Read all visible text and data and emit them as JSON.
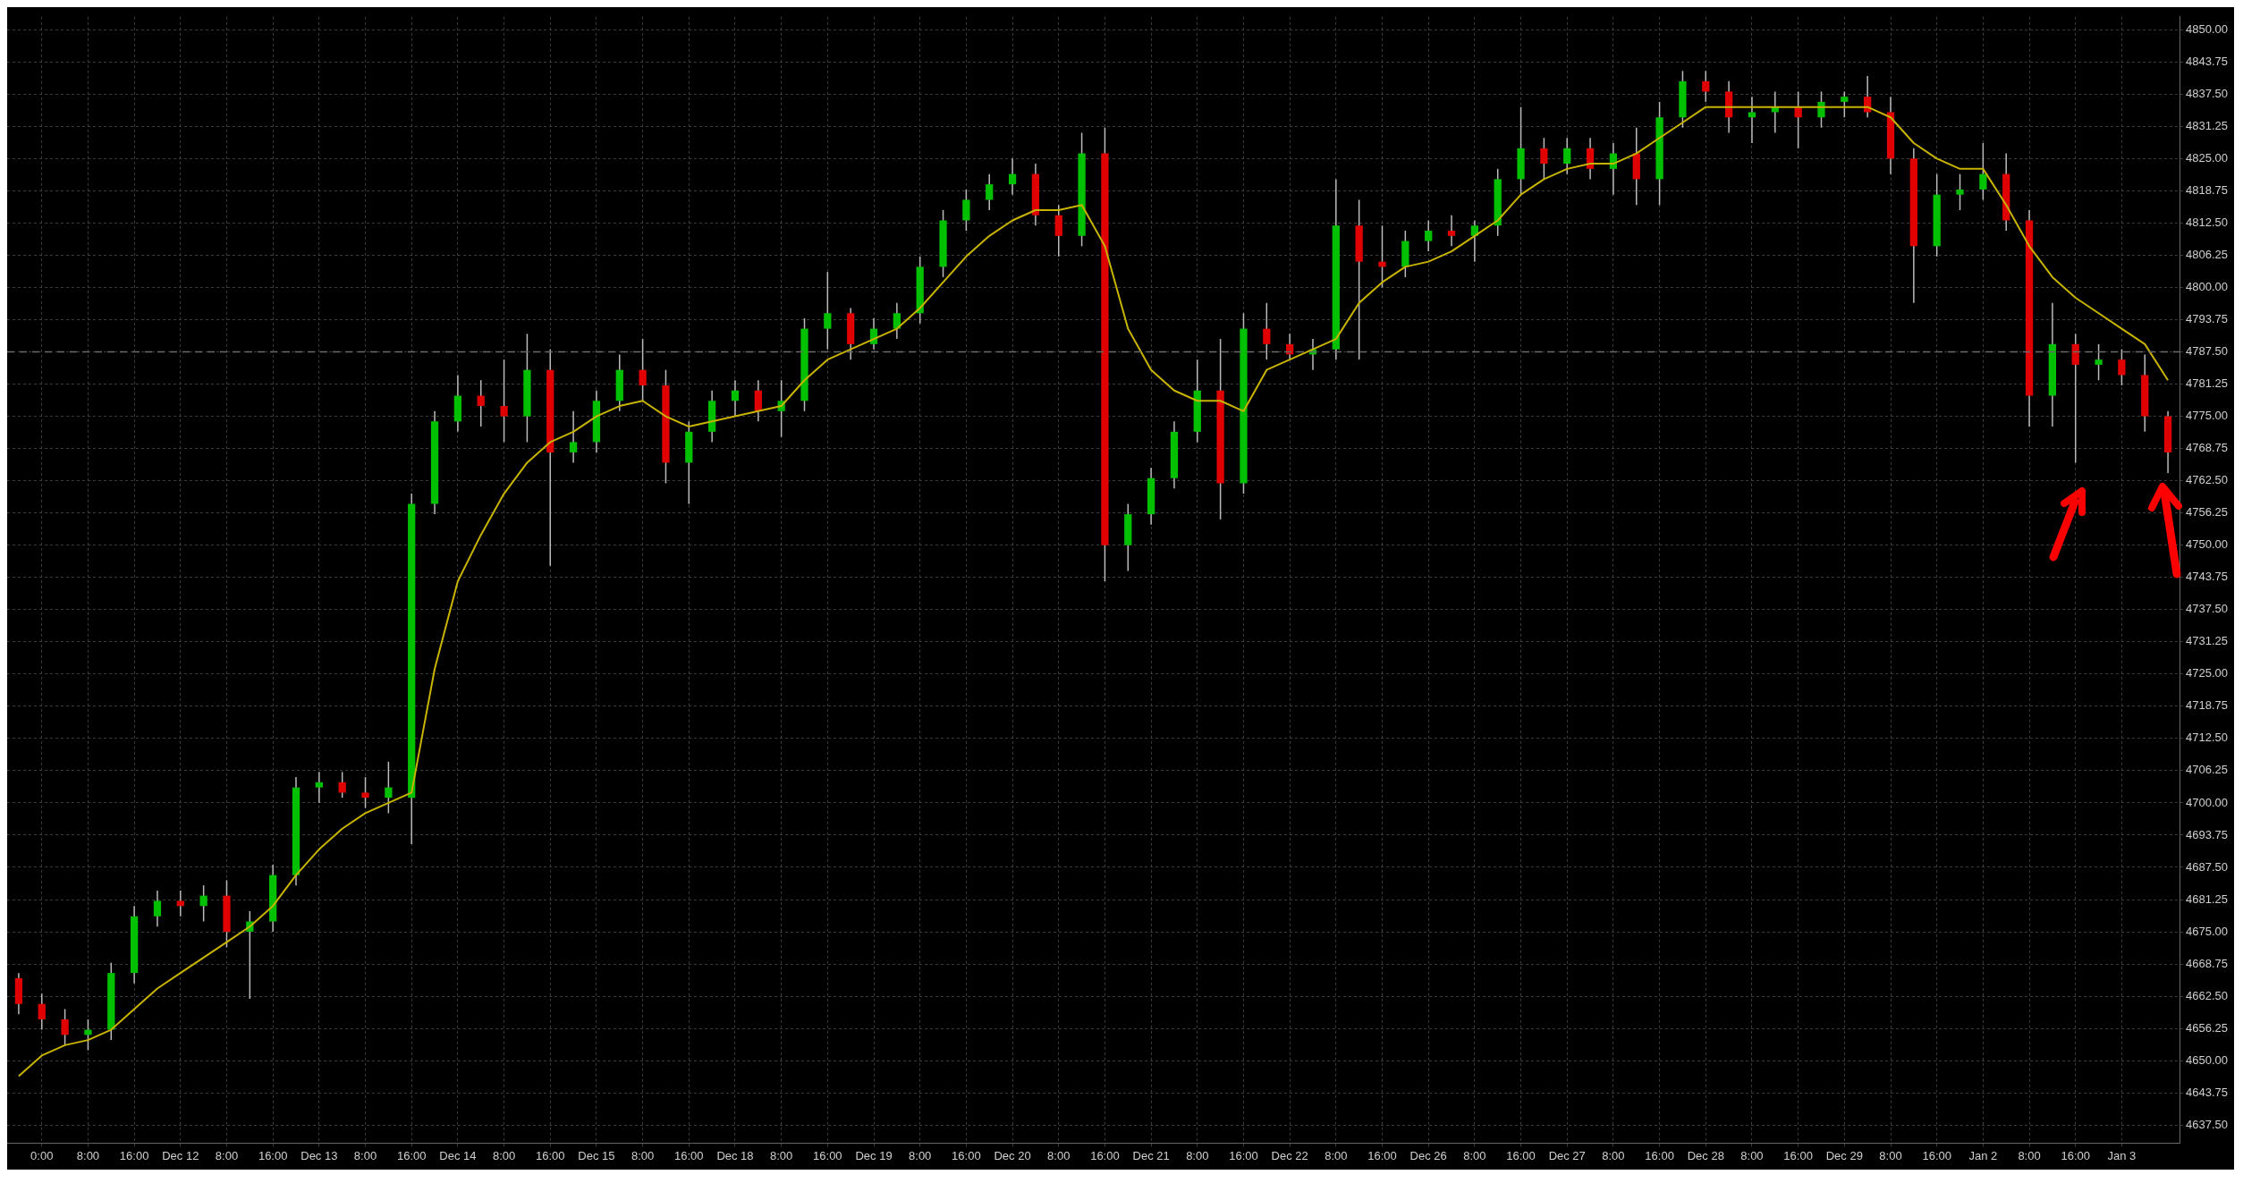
{
  "chart_data": {
    "type": "candlestick",
    "categories": [
      null,
      "0:00",
      null,
      "8:00",
      null,
      "16:00",
      null,
      "Dec 12",
      null,
      "8:00",
      null,
      "16:00",
      null,
      "Dec 13",
      null,
      "8:00",
      null,
      "16:00",
      null,
      "Dec 14",
      null,
      "8:00",
      null,
      "16:00",
      null,
      "Dec 15",
      null,
      "8:00",
      null,
      "16:00",
      null,
      "Dec 18",
      null,
      "8:00",
      null,
      "16:00",
      null,
      "Dec 19",
      null,
      "8:00",
      null,
      "16:00",
      null,
      "Dec 20",
      null,
      "8:00",
      null,
      "16:00",
      null,
      "Dec 21",
      null,
      "8:00",
      null,
      "16:00",
      null,
      "Dec 22",
      null,
      "8:00",
      null,
      "16:00",
      null,
      "Dec 26",
      null,
      "8:00",
      null,
      "16:00",
      null,
      "Dec 27",
      null,
      "8:00",
      null,
      "16:00",
      null,
      "Dec 28",
      null,
      "8:00",
      null,
      "16:00",
      null,
      "Dec 29",
      null,
      "8:00",
      null,
      "16:00",
      null,
      "Jan 2",
      null,
      "8:00",
      null,
      "16:00",
      null,
      "Jan 3",
      null,
      null
    ],
    "ohlc": [
      [
        4666,
        4667,
        4659,
        4661
      ],
      [
        4661,
        4663,
        4656,
        4658
      ],
      [
        4658,
        4660,
        4653,
        4655
      ],
      [
        4655,
        4658,
        4652,
        4656
      ],
      [
        4656,
        4669,
        4654,
        4667
      ],
      [
        4667,
        4680,
        4665,
        4678
      ],
      [
        4678,
        4683,
        4676,
        4681
      ],
      [
        4681,
        4683,
        4678,
        4680
      ],
      [
        4680,
        4684,
        4677,
        4682
      ],
      [
        4682,
        4685,
        4672,
        4675
      ],
      [
        4675,
        4679,
        4662,
        4677
      ],
      [
        4677,
        4688,
        4675,
        4686
      ],
      [
        4686,
        4705,
        4684,
        4703
      ],
      [
        4703,
        4706,
        4700,
        4704
      ],
      [
        4704,
        4706,
        4701,
        4702
      ],
      [
        4702,
        4705,
        4699,
        4701
      ],
      [
        4701,
        4708,
        4698,
        4703
      ],
      [
        4701,
        4760,
        4692,
        4758
      ],
      [
        4758,
        4776,
        4756,
        4774
      ],
      [
        4774,
        4783,
        4772,
        4779
      ],
      [
        4779,
        4782,
        4773,
        4777
      ],
      [
        4777,
        4786,
        4770,
        4775
      ],
      [
        4775,
        4791,
        4770,
        4784
      ],
      [
        4784,
        4788,
        4746,
        4768
      ],
      [
        4768,
        4776,
        4766,
        4770
      ],
      [
        4770,
        4780,
        4768,
        4778
      ],
      [
        4778,
        4787,
        4776,
        4784
      ],
      [
        4784,
        4790,
        4778,
        4781
      ],
      [
        4781,
        4784,
        4762,
        4766
      ],
      [
        4766,
        4774,
        4758,
        4772
      ],
      [
        4772,
        4780,
        4770,
        4778
      ],
      [
        4778,
        4782,
        4775,
        4780
      ],
      [
        4780,
        4782,
        4774,
        4776
      ],
      [
        4776,
        4782,
        4771,
        4778
      ],
      [
        4778,
        4794,
        4776,
        4792
      ],
      [
        4792,
        4803,
        4788,
        4795
      ],
      [
        4795,
        4796,
        4786,
        4789
      ],
      [
        4789,
        4794,
        4788,
        4792
      ],
      [
        4792,
        4797,
        4790,
        4795
      ],
      [
        4795,
        4806,
        4793,
        4804
      ],
      [
        4804,
        4815,
        4802,
        4813
      ],
      [
        4813,
        4819,
        4811,
        4817
      ],
      [
        4817,
        4822,
        4815,
        4820
      ],
      [
        4820,
        4825,
        4818,
        4822
      ],
      [
        4822,
        4824,
        4812,
        4814
      ],
      [
        4814,
        4816,
        4806,
        4810
      ],
      [
        4810,
        4830,
        4808,
        4826
      ],
      [
        4826,
        4831,
        4743,
        4750
      ],
      [
        4750,
        4758,
        4745,
        4756
      ],
      [
        4756,
        4765,
        4754,
        4763
      ],
      [
        4763,
        4774,
        4761,
        4772
      ],
      [
        4772,
        4786,
        4770,
        4780
      ],
      [
        4780,
        4790,
        4755,
        4762
      ],
      [
        4762,
        4795,
        4760,
        4792
      ],
      [
        4792,
        4797,
        4786,
        4789
      ],
      [
        4789,
        4791,
        4786,
        4787
      ],
      [
        4787,
        4790,
        4784,
        4788
      ],
      [
        4788,
        4821,
        4786,
        4812
      ],
      [
        4812,
        4817,
        4786,
        4805
      ],
      [
        4805,
        4812,
        4800,
        4804
      ],
      [
        4804,
        4811,
        4802,
        4809
      ],
      [
        4809,
        4813,
        4807,
        4811
      ],
      [
        4811,
        4814,
        4808,
        4810
      ],
      [
        4810,
        4813,
        4805,
        4812
      ],
      [
        4812,
        4823,
        4810,
        4821
      ],
      [
        4821,
        4835,
        4818,
        4827
      ],
      [
        4827,
        4829,
        4821,
        4824
      ],
      [
        4824,
        4829,
        4822,
        4827
      ],
      [
        4827,
        4829,
        4821,
        4823
      ],
      [
        4823,
        4828,
        4818,
        4826
      ],
      [
        4826,
        4831,
        4816,
        4821
      ],
      [
        4821,
        4836,
        4816,
        4833
      ],
      [
        4833,
        4842,
        4831,
        4840
      ],
      [
        4840,
        4842,
        4836,
        4838
      ],
      [
        4838,
        4840,
        4830,
        4833
      ],
      [
        4833,
        4837,
        4828,
        4834
      ],
      [
        4834,
        4838,
        4830,
        4835
      ],
      [
        4835,
        4838,
        4827,
        4833
      ],
      [
        4833,
        4838,
        4831,
        4836
      ],
      [
        4836,
        4838,
        4833,
        4837
      ],
      [
        4837,
        4841,
        4833,
        4834
      ],
      [
        4834,
        4837,
        4822,
        4825
      ],
      [
        4825,
        4827,
        4797,
        4808
      ],
      [
        4808,
        4822,
        4806,
        4818
      ],
      [
        4818,
        4822,
        4815,
        4819
      ],
      [
        4819,
        4828,
        4817,
        4822
      ],
      [
        4822,
        4826,
        4811,
        4813
      ],
      [
        4813,
        4815,
        4773,
        4779
      ],
      [
        4779,
        4797,
        4773,
        4789
      ],
      [
        4789,
        4791,
        4766,
        4785
      ],
      [
        4785,
        4789,
        4782,
        4786
      ],
      [
        4786,
        4788,
        4781,
        4783
      ],
      [
        4783,
        4787,
        4772,
        4775
      ],
      [
        4775,
        4776,
        4764,
        4768
      ]
    ],
    "colors": [
      "#e00000",
      "#e00000",
      "#e00000",
      "#00c000",
      "#00c000",
      "#00c000",
      "#00c000",
      "#e00000",
      "#00c000",
      "#e00000",
      "#00c000",
      "#00c000",
      "#00c000",
      "#00c000",
      "#e00000",
      "#e00000",
      "#00c000",
      "#00c000",
      "#00c000",
      "#00c000",
      "#e00000",
      "#e00000",
      "#00c000",
      "#e00000",
      "#00c000",
      "#00c000",
      "#00c000",
      "#e00000",
      "#e00000",
      "#00c000",
      "#00c000",
      "#00c000",
      "#e00000",
      "#00c000",
      "#00c000",
      "#00c000",
      "#e00000",
      "#00c000",
      "#00c000",
      "#00c000",
      "#00c000",
      "#00c000",
      "#00c000",
      "#00c000",
      "#e00000",
      "#e00000",
      "#00c000",
      "#e00000",
      "#00c000",
      "#00c000",
      "#00c000",
      "#00c000",
      "#e00000",
      "#00c000",
      "#e00000",
      "#e00000",
      "#00c000",
      "#00c000",
      "#e00000",
      "#e00000",
      "#00c000",
      "#00c000",
      "#e00000",
      "#00c000",
      "#00c000",
      "#00c000",
      "#e00000",
      "#00c000",
      "#e00000",
      "#00c000",
      "#e00000",
      "#00c000",
      "#00c000",
      "#e00000",
      "#e00000",
      "#00c000",
      "#00c000",
      "#e00000",
      "#00c000",
      "#00c000",
      "#e00000",
      "#e00000",
      "#e00000",
      "#00c000",
      "#00c000",
      "#00c000",
      "#e00000",
      "#e00000",
      "#00c000",
      "#e00000",
      "#00c000",
      "#e00000",
      "#e00000",
      "#e00000"
    ],
    "series": [
      {
        "type": "line",
        "color": "#c8b400",
        "values": [
          4647,
          4651,
          4653,
          4654,
          4656,
          4660,
          4664,
          4667,
          4670,
          4673,
          4676,
          4680,
          4686,
          4691,
          4695,
          4698,
          4700,
          4702,
          4726,
          4743,
          4752,
          4760,
          4766,
          4770,
          4772,
          4775,
          4777,
          4778,
          4775,
          4773,
          4774,
          4775,
          4776,
          4777,
          4782,
          4786,
          4788,
          4790,
          4792,
          4796,
          4801,
          4806,
          4810,
          4813,
          4815,
          4815,
          4816,
          4808,
          4792,
          4784,
          4780,
          4778,
          4778,
          4776,
          4784,
          4786,
          4788,
          4790,
          4797,
          4801,
          4804,
          4805,
          4807,
          4810,
          4813,
          4818,
          4821,
          4823,
          4824,
          4824,
          4826,
          4829,
          4832,
          4835,
          4835,
          4835,
          4835,
          4835,
          4835,
          4835,
          4835,
          4833,
          4828,
          4825,
          4823,
          4823,
          4816,
          4808,
          4802,
          4798,
          4795,
          4792,
          4789,
          4782
        ]
      }
    ],
    "ylim": [
      4634,
      4852.5
    ],
    "yticks": [
      {
        "value": 4637.5,
        "label": "4637.50"
      },
      {
        "value": 4643.75,
        "label": "4643.75"
      },
      {
        "value": 4650,
        "label": "4650.00"
      },
      {
        "value": 4656.25,
        "label": "4656.25"
      },
      {
        "value": 4662.5,
        "label": "4662.50"
      },
      {
        "value": 4668.75,
        "label": "4668.75"
      },
      {
        "value": 4675,
        "label": "4675.00"
      },
      {
        "value": 4681.25,
        "label": "4681.25"
      },
      {
        "value": 4687.5,
        "label": "4687.50"
      },
      {
        "value": 4693.75,
        "label": "4693.75"
      },
      {
        "value": 4700,
        "label": "4700.00"
      },
      {
        "value": 4706.25,
        "label": "4706.25"
      },
      {
        "value": 4712.5,
        "label": "4712.50"
      },
      {
        "value": 4718.75,
        "label": "4718.75"
      },
      {
        "value": 4725,
        "label": "4725.00"
      },
      {
        "value": 4731.25,
        "label": "4731.25"
      },
      {
        "value": 4737.5,
        "label": "4737.50"
      },
      {
        "value": 4743.75,
        "label": "4743.75"
      },
      {
        "value": 4750,
        "label": "4750.00"
      },
      {
        "value": 4756.25,
        "label": "4756.25"
      },
      {
        "value": 4762.5,
        "label": "4762.50"
      },
      {
        "value": 4768.75,
        "label": "4768.75"
      },
      {
        "value": 4775,
        "label": "4775.00"
      },
      {
        "value": 4781.25,
        "label": "4781.25"
      },
      {
        "value": 4787.5,
        "label": "4787.50"
      },
      {
        "value": 4793.75,
        "label": "4793.75"
      },
      {
        "value": 4800,
        "label": "4800.00"
      },
      {
        "value": 4806.25,
        "label": "4806.25"
      },
      {
        "value": 4812.5,
        "label": "4812.50"
      },
      {
        "value": 4818.75,
        "label": "4818.75"
      },
      {
        "value": 4825,
        "label": "4825.00"
      },
      {
        "value": 4831.25,
        "label": "4831.25"
      },
      {
        "value": 4837.5,
        "label": "4837.50"
      },
      {
        "value": 4843.75,
        "label": "4843.75"
      },
      {
        "value": 4850,
        "label": "4850.00"
      }
    ],
    "ref_lines": [
      {
        "axis": "y",
        "value": 4787.5,
        "color": "#6a6a6a",
        "line_style": "dashed"
      }
    ],
    "grid": true,
    "line_style": "solid"
  }
}
